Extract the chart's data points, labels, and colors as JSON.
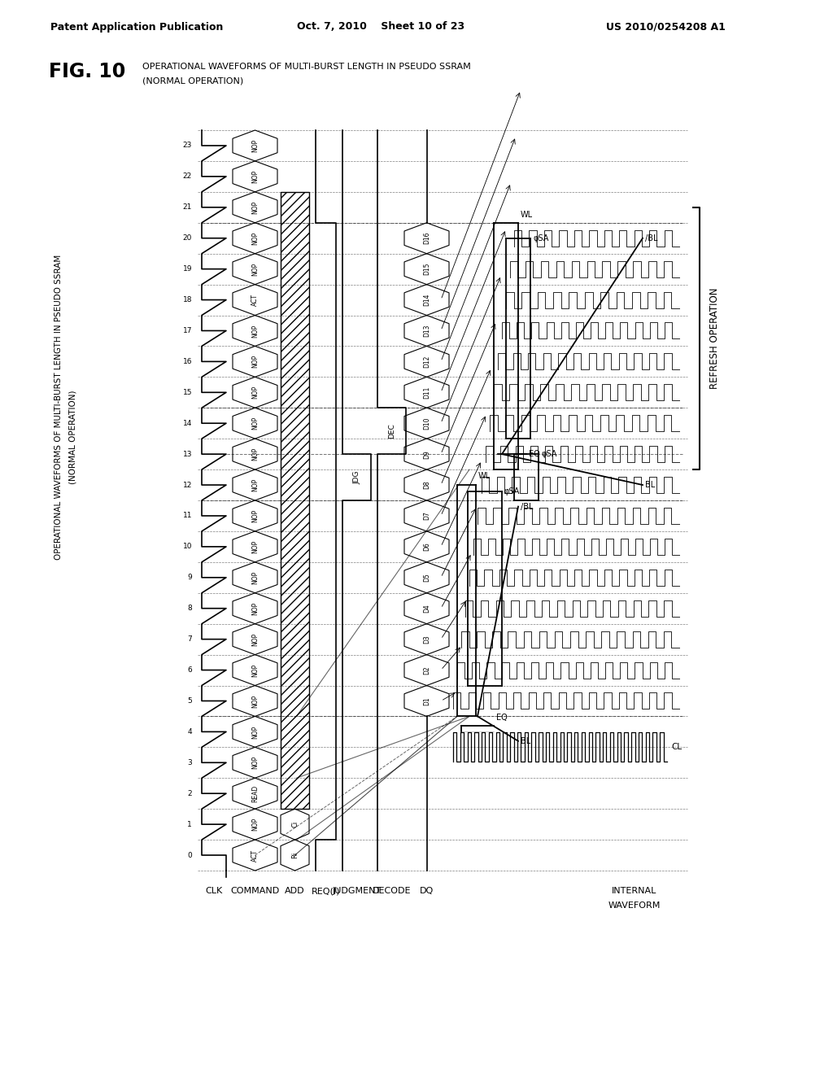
{
  "header_left": "Patent Application Publication",
  "header_center": "Oct. 7, 2010    Sheet 10 of 23",
  "header_right": "US 2010/0254208 A1",
  "fig_label": "FIG. 10",
  "subtitle1": "OPERATIONAL WAVEFORMS OF MULTI-BURST LENGTH IN PSEUDO SSRAM",
  "subtitle2": "(NORMAL OPERATION)",
  "bg_color": "#ffffff",
  "signal_labels": [
    "CLK",
    "COMMAND",
    "ADD",
    "REQ(I)",
    "JUDGMENT",
    "DECODE",
    "DQ",
    "INTERNAL\nWAVEFORM"
  ],
  "clk_numbers": [
    "0",
    "1",
    "2",
    "3",
    "4",
    "5",
    "6",
    "7",
    "8",
    "9",
    "10",
    "11",
    "12",
    "13",
    "14",
    "15",
    "16",
    "17",
    "18",
    "19",
    "20",
    "21",
    "22",
    "23"
  ],
  "command_labels": [
    "ACT",
    "NOP",
    "READ",
    "NOP",
    "NOP",
    "NOP",
    "NOP",
    "NOP",
    "NOP",
    "NOP",
    "NOP",
    "NOP",
    "NOP",
    "NOP",
    "NOP",
    "NOP",
    "NOP",
    "NOP",
    "ACT",
    "NOP",
    "NOP",
    "NOP",
    "NOP",
    "NOP"
  ],
  "dq_labels": [
    "D1",
    "D2",
    "D3",
    "D4",
    "D5",
    "D6",
    "D7",
    "D8",
    "D9",
    "D10",
    "D11",
    "D12",
    "D13",
    "D14",
    "D15",
    "D16"
  ],
  "refresh_label": "REFRESH OPERATION"
}
